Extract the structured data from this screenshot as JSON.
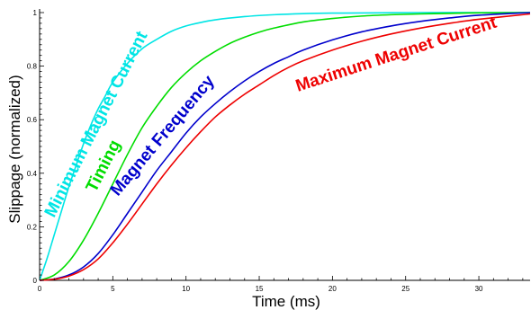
{
  "chart_data": {
    "type": "line",
    "title": "",
    "xlabel": "Time (ms)",
    "ylabel": "Slippage  (normalized)",
    "xlim": [
      0,
      33.5
    ],
    "ylim": [
      0,
      1
    ],
    "x_ticks": [
      "0",
      "5",
      "10",
      "15",
      "20",
      "25",
      "30"
    ],
    "y_ticks": [
      "0",
      "0.2",
      "0.4",
      "0.6",
      "0.8",
      "1"
    ],
    "grid": false,
    "legend": "none",
    "series": [
      {
        "name": "Minimum Magnet Current",
        "color": "#00e5e5",
        "x": [
          0,
          0.5,
          1,
          1.5,
          2,
          2.5,
          3,
          3.5,
          4,
          4.5,
          5,
          6,
          7,
          8,
          9,
          10,
          11,
          12,
          14,
          16,
          18,
          20,
          23,
          26,
          30,
          33.5
        ],
        "y": [
          0,
          0.08,
          0.17,
          0.26,
          0.35,
          0.43,
          0.51,
          0.58,
          0.64,
          0.69,
          0.74,
          0.81,
          0.865,
          0.9,
          0.93,
          0.95,
          0.963,
          0.973,
          0.985,
          0.992,
          0.996,
          0.998,
          0.999,
          1.0,
          1.0,
          1.0
        ]
      },
      {
        "name": "Timing",
        "color": "#00dd00",
        "x": [
          0,
          1,
          2,
          3,
          4,
          5,
          6,
          7,
          8,
          9,
          10,
          11,
          12,
          13,
          14,
          15,
          16,
          18,
          20,
          22,
          24,
          26,
          28,
          30,
          33.5
        ],
        "y": [
          0,
          0.02,
          0.07,
          0.15,
          0.25,
          0.36,
          0.47,
          0.57,
          0.65,
          0.72,
          0.775,
          0.82,
          0.855,
          0.885,
          0.908,
          0.927,
          0.942,
          0.965,
          0.978,
          0.987,
          0.992,
          0.995,
          0.997,
          0.999,
          1.0
        ]
      },
      {
        "name": "Magnet Frequency",
        "color": "#0000cc",
        "x": [
          0,
          1,
          2,
          3,
          4,
          5,
          6,
          7,
          8,
          9,
          10,
          11,
          12,
          13,
          14,
          15,
          16,
          17,
          18,
          20,
          22,
          24,
          26,
          28,
          30,
          33.5
        ],
        "y": [
          0,
          0.005,
          0.02,
          0.05,
          0.1,
          0.17,
          0.25,
          0.33,
          0.41,
          0.48,
          0.55,
          0.61,
          0.66,
          0.705,
          0.745,
          0.78,
          0.81,
          0.835,
          0.86,
          0.898,
          0.928,
          0.95,
          0.967,
          0.98,
          0.99,
          1.0
        ]
      },
      {
        "name": "Maximum Magnet Current",
        "color": "#ee0000",
        "x": [
          0,
          1,
          2,
          3,
          4,
          5,
          6,
          7,
          8,
          9,
          10,
          11,
          12,
          13,
          14,
          15,
          16,
          17,
          18,
          20,
          22,
          24,
          26,
          28,
          30,
          33.5
        ],
        "y": [
          0,
          0.004,
          0.016,
          0.04,
          0.08,
          0.14,
          0.21,
          0.285,
          0.36,
          0.43,
          0.495,
          0.555,
          0.61,
          0.655,
          0.695,
          0.73,
          0.765,
          0.795,
          0.82,
          0.86,
          0.893,
          0.92,
          0.942,
          0.96,
          0.975,
          0.995
        ]
      }
    ]
  }
}
